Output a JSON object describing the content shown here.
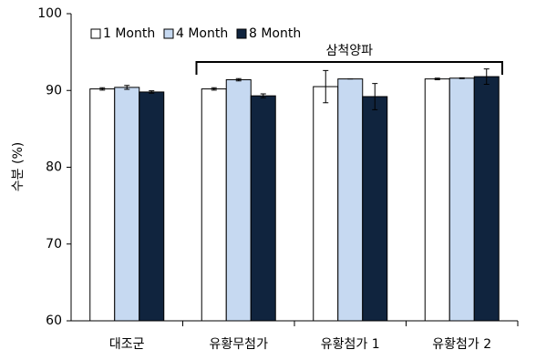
{
  "chart_data": {
    "type": "bar",
    "y_label": "수분 (%)",
    "annotation": "삼척양파",
    "categories": [
      "대조군",
      "유황무첨가",
      "유황첨가 1",
      "유황첨가 2"
    ],
    "series": [
      {
        "name": "1 Month",
        "color": "#ffffff",
        "values": [
          90.2,
          90.2,
          90.5,
          91.5
        ],
        "errors": [
          0.15,
          0.15,
          2.1,
          0.1
        ]
      },
      {
        "name": "4 Month",
        "color": "#c6d9f1",
        "values": [
          90.4,
          91.4,
          91.5,
          91.6
        ],
        "errors": [
          0.25,
          0.15,
          0,
          0.05
        ]
      },
      {
        "name": "8 Month",
        "color": "#10243e",
        "values": [
          89.8,
          89.3,
          89.2,
          91.8
        ],
        "errors": [
          0.15,
          0.25,
          1.7,
          1.0
        ]
      }
    ],
    "ylim": [
      60,
      100
    ],
    "yticks": [
      60,
      70,
      80,
      90,
      100
    ],
    "grid": false,
    "legend": "top-left"
  }
}
